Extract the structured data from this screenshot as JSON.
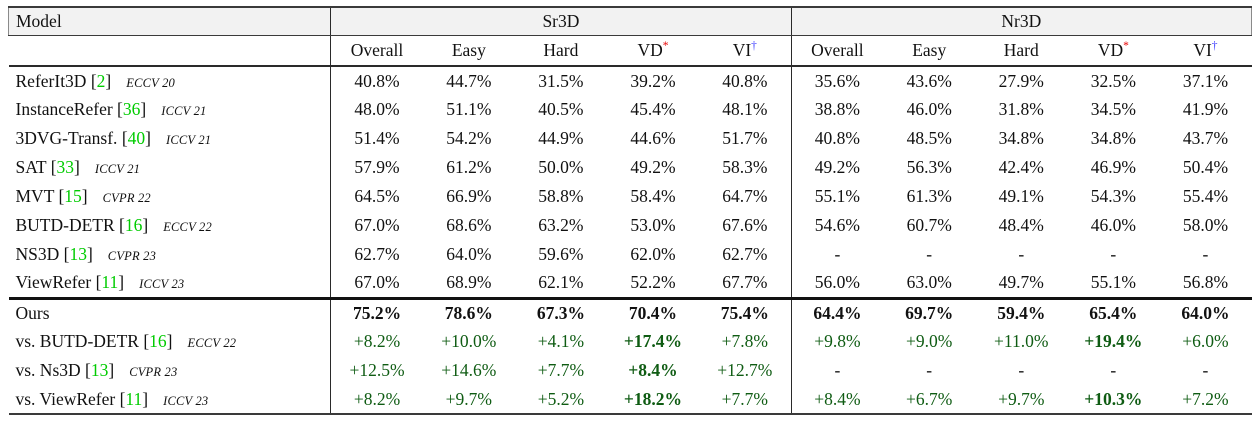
{
  "colors": {
    "cite_green": "#00cc00",
    "delta_green": "#0f5c13",
    "star_red": "#e60000",
    "dagger_blue": "#4040ff",
    "header_band_gray": "#f2f2f2"
  },
  "table": {
    "model_header": "Model",
    "groups": [
      {
        "label": "Sr3D"
      },
      {
        "label": "Nr3D"
      }
    ],
    "subheaders": [
      {
        "label": "Overall",
        "sup": ""
      },
      {
        "label": "Easy",
        "sup": ""
      },
      {
        "label": "Hard",
        "sup": ""
      },
      {
        "label": "VD",
        "sup": "*"
      },
      {
        "label": "VI",
        "sup": "†"
      }
    ],
    "cite_brackets": [
      "[",
      "]"
    ],
    "rows": [
      {
        "name": "ReferIt3D",
        "cite": "2",
        "venue": "ECCV 20",
        "section": "baseline",
        "sr3d": [
          "40.8%",
          "44.7%",
          "31.5%",
          "39.2%",
          "40.8%"
        ],
        "nr3d": [
          "35.6%",
          "43.6%",
          "27.9%",
          "32.5%",
          "37.1%"
        ]
      },
      {
        "name": "InstanceRefer",
        "cite": "36",
        "venue": "ICCV 21",
        "section": "baseline",
        "sr3d": [
          "48.0%",
          "51.1%",
          "40.5%",
          "45.4%",
          "48.1%"
        ],
        "nr3d": [
          "38.8%",
          "46.0%",
          "31.8%",
          "34.5%",
          "41.9%"
        ]
      },
      {
        "name": "3DVG-Transf.",
        "cite": "40",
        "venue": "ICCV 21",
        "section": "baseline",
        "sr3d": [
          "51.4%",
          "54.2%",
          "44.9%",
          "44.6%",
          "51.7%"
        ],
        "nr3d": [
          "40.8%",
          "48.5%",
          "34.8%",
          "34.8%",
          "43.7%"
        ]
      },
      {
        "name": "SAT",
        "cite": "33",
        "venue": "ICCV 21",
        "section": "baseline",
        "sr3d": [
          "57.9%",
          "61.2%",
          "50.0%",
          "49.2%",
          "58.3%"
        ],
        "nr3d": [
          "49.2%",
          "56.3%",
          "42.4%",
          "46.9%",
          "50.4%"
        ]
      },
      {
        "name": "MVT",
        "cite": "15",
        "venue": "CVPR 22",
        "section": "baseline",
        "sr3d": [
          "64.5%",
          "66.9%",
          "58.8%",
          "58.4%",
          "64.7%"
        ],
        "nr3d": [
          "55.1%",
          "61.3%",
          "49.1%",
          "54.3%",
          "55.4%"
        ]
      },
      {
        "name": "BUTD-DETR",
        "cite": "16",
        "venue": "ECCV 22",
        "section": "baseline",
        "sr3d": [
          "67.0%",
          "68.6%",
          "63.2%",
          "53.0%",
          "67.6%"
        ],
        "nr3d": [
          "54.6%",
          "60.7%",
          "48.4%",
          "46.0%",
          "58.0%"
        ]
      },
      {
        "name": "NS3D",
        "cite": "13",
        "venue": "CVPR 23",
        "section": "baseline",
        "sr3d": [
          "62.7%",
          "64.0%",
          "59.6%",
          "62.0%",
          "62.7%"
        ],
        "nr3d": [
          "-",
          "-",
          "-",
          "-",
          "-"
        ]
      },
      {
        "name": "ViewRefer",
        "cite": "11",
        "venue": "ICCV 23",
        "section": "baseline",
        "sr3d": [
          "67.0%",
          "68.9%",
          "62.1%",
          "52.2%",
          "67.7%"
        ],
        "nr3d": [
          "56.0%",
          "63.0%",
          "49.7%",
          "55.1%",
          "56.8%"
        ]
      },
      {
        "name": "Ours",
        "cite": "",
        "venue": "",
        "section": "ours",
        "sr3d": [
          "75.2%",
          "78.6%",
          "67.3%",
          "70.4%",
          "75.4%"
        ],
        "nr3d": [
          "64.4%",
          "69.7%",
          "59.4%",
          "65.4%",
          "64.0%"
        ]
      },
      {
        "name": "vs. BUTD-DETR",
        "cite": "16",
        "venue": "ECCV 22",
        "section": "vs",
        "sr3d": [
          "+8.2%",
          "+10.0%",
          "+4.1%",
          "+17.4%",
          "+7.8%"
        ],
        "nr3d": [
          "+9.8%",
          "+9.0%",
          "+11.0%",
          "+19.4%",
          "+6.0%"
        ]
      },
      {
        "name": "vs. Ns3D",
        "cite": "13",
        "venue": "CVPR 23",
        "section": "vs",
        "sr3d": [
          "+12.5%",
          "+14.6%",
          "+7.7%",
          "+8.4%",
          "+12.7%"
        ],
        "nr3d": [
          "-",
          "-",
          "-",
          "-",
          "-"
        ]
      },
      {
        "name": "vs. ViewRefer",
        "cite": "11",
        "venue": "ICCV 23",
        "section": "vs",
        "sr3d": [
          "+8.2%",
          "+9.7%",
          "+5.2%",
          "+18.2%",
          "+7.7%"
        ],
        "nr3d": [
          "+8.4%",
          "+6.7%",
          "+9.7%",
          "+10.3%",
          "+7.2%"
        ]
      }
    ]
  }
}
